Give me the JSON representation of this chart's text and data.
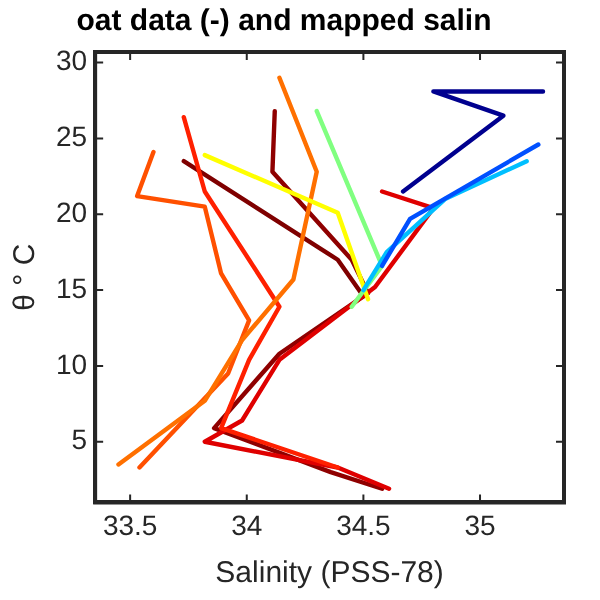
{
  "chart_data": {
    "type": "line",
    "title": "oat data (-) and mapped salin",
    "xlabel": "Salinity (PSS-78)",
    "ylabel": "θ ° C",
    "xlim": [
      33.35,
      35.36
    ],
    "xticks": [
      33.5,
      34,
      34.5,
      35
    ],
    "ylim": [
      1,
      30.7
    ],
    "yticks": [
      5,
      10,
      15,
      20,
      25,
      30
    ],
    "grid": false,
    "legend": false,
    "marker": "none",
    "line_style": "solid",
    "series": [
      {
        "color": "#00008f",
        "x": [
          35.27,
          34.8,
          35.1,
          34.67
        ],
        "values": [
          28.1,
          28.1,
          26.5,
          21.5
        ]
      },
      {
        "color": "#0050ff",
        "x": [
          35.25,
          34.7,
          34.58
        ],
        "values": [
          24.6,
          19.7,
          16.6
        ]
      },
      {
        "color": "#00bfff",
        "x": [
          35.2,
          34.85,
          34.6,
          34.5
        ],
        "values": [
          23.5,
          21,
          17.5,
          15
        ]
      },
      {
        "color": "#80ff80",
        "x": [
          34.3,
          34.58,
          34.45
        ],
        "values": [
          26.8,
          16.6,
          13.9
        ]
      },
      {
        "color": "#ffff00",
        "x": [
          33.82,
          34.39,
          34.52
        ],
        "values": [
          23.9,
          20.1,
          14.4
        ]
      },
      {
        "color": "#ff7000",
        "x": [
          34.14,
          34.3,
          34.2,
          33.98,
          33.82,
          33.45
        ],
        "values": [
          29,
          22.8,
          15.7,
          11.7,
          7.7,
          3.5
        ]
      },
      {
        "color": "#ff5000",
        "x": [
          33.6,
          33.53,
          33.82,
          33.89,
          34.01,
          33.92,
          33.54
        ],
        "values": [
          24.1,
          21.2,
          20.5,
          16.1,
          13,
          9.5,
          3.3
        ]
      },
      {
        "color": "#ff2000",
        "x": [
          33.73,
          33.82,
          34.01,
          34.14,
          34.01,
          33.89,
          34.39
        ],
        "values": [
          26.4,
          21.5,
          17,
          13.9,
          10.4,
          5.9,
          3.3
        ]
      },
      {
        "color": "#df0000",
        "x": [
          34.58,
          34.8,
          34.55,
          34.14,
          33.98,
          33.82,
          34.39,
          34.61
        ],
        "values": [
          21.5,
          20.4,
          15.2,
          10.4,
          6.4,
          5,
          3.3,
          1.9
        ]
      },
      {
        "color": "#8f0000",
        "x": [
          34.12,
          34.11,
          34.45,
          34.52,
          34.14,
          33.86,
          34.36,
          34.58
        ],
        "values": [
          26.8,
          22.8,
          17,
          14.8,
          10.8,
          5.9,
          3,
          1.9
        ]
      },
      {
        "color": "#7f0000",
        "x": [
          33.73,
          34.39,
          34.5
        ],
        "values": [
          23.5,
          17,
          14.6
        ]
      }
    ]
  }
}
